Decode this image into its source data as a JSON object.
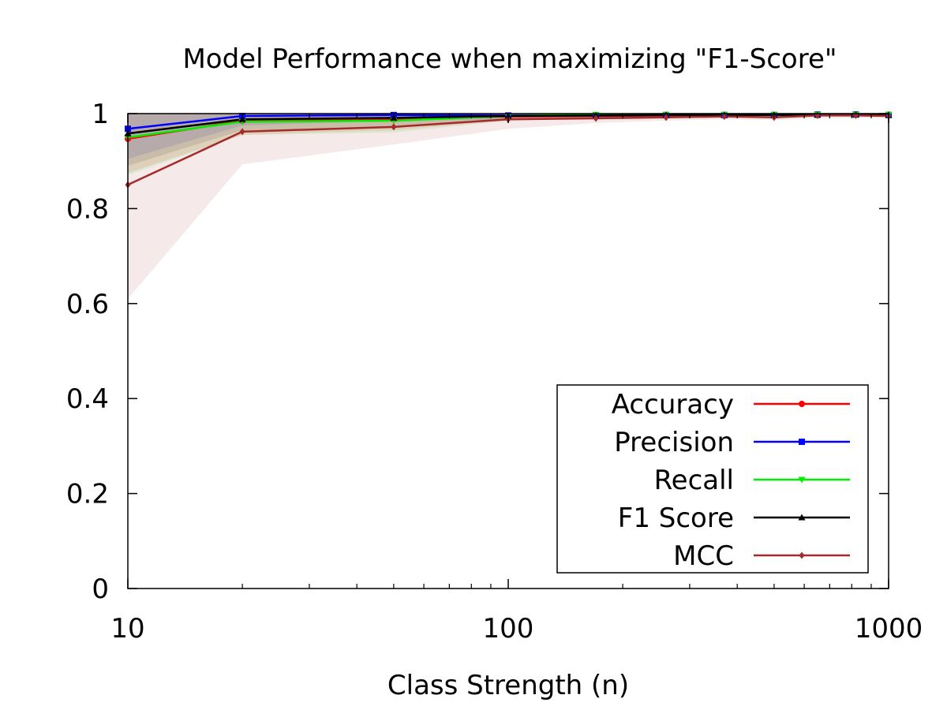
{
  "chart_data": {
    "type": "line",
    "title": "Model Performance when maximizing \"F1-Score\"",
    "xlabel": "Class Strength (n)",
    "ylabel": "",
    "xscale": "log",
    "xlim": [
      10,
      1000
    ],
    "ylim": [
      0,
      1
    ],
    "xticks": [
      {
        "value": 10,
        "label": "10"
      },
      {
        "value": 100,
        "label": "100"
      },
      {
        "value": 1000,
        "label": "1000"
      }
    ],
    "yticks": [
      {
        "value": 0,
        "label": "0"
      },
      {
        "value": 0.2,
        "label": "0.2"
      },
      {
        "value": 0.4,
        "label": "0.4"
      },
      {
        "value": 0.6,
        "label": "0.6"
      },
      {
        "value": 0.8,
        "label": "0.8"
      },
      {
        "value": 1,
        "label": "1"
      }
    ],
    "grid": false,
    "legend_position": "bottom-right",
    "x": [
      10,
      20,
      50,
      100,
      170,
      260,
      370,
      500,
      650,
      820,
      1000
    ],
    "series": [
      {
        "name": "Accuracy",
        "color": "#ff0000",
        "marker": "circle",
        "values": [
          0.947,
          0.985,
          0.988,
          0.994,
          0.995,
          0.996,
          0.997,
          0.997,
          0.997,
          0.998,
          0.998
        ],
        "lower": [
          0.875,
          0.955,
          0.965,
          0.985,
          0.99,
          0.993,
          0.994,
          0.994,
          0.995,
          0.996,
          0.996
        ],
        "upper": [
          1.0,
          1.0,
          1.0,
          1.0,
          1.0,
          1.0,
          1.0,
          1.0,
          1.0,
          1.0,
          1.0
        ]
      },
      {
        "name": "Precision",
        "color": "#0000ff",
        "marker": "square",
        "values": [
          0.968,
          0.995,
          0.997,
          0.996,
          0.996,
          0.997,
          0.997,
          0.997,
          0.998,
          0.998,
          0.997
        ],
        "lower": [
          0.905,
          0.975,
          0.985,
          0.988,
          0.99,
          0.992,
          0.993,
          0.994,
          0.995,
          0.996,
          0.995
        ],
        "upper": [
          1.0,
          1.0,
          1.0,
          1.0,
          1.0,
          1.0,
          1.0,
          1.0,
          1.0,
          1.0,
          1.0
        ]
      },
      {
        "name": "Recall",
        "color": "#00ee00",
        "marker": "triangle-down",
        "values": [
          0.95,
          0.983,
          0.985,
          0.995,
          0.998,
          0.998,
          0.998,
          0.998,
          0.998,
          0.998,
          0.998
        ],
        "lower": [
          0.87,
          0.955,
          0.96,
          0.985,
          0.992,
          0.994,
          0.995,
          0.995,
          0.996,
          0.996,
          0.996
        ],
        "upper": [
          1.0,
          1.0,
          1.0,
          1.0,
          1.0,
          1.0,
          1.0,
          1.0,
          1.0,
          1.0,
          1.0
        ]
      },
      {
        "name": "F1 Score",
        "color": "#000000",
        "marker": "triangle-up",
        "values": [
          0.958,
          0.988,
          0.991,
          0.995,
          0.996,
          0.997,
          0.997,
          0.997,
          0.997,
          0.998,
          0.997
        ],
        "lower": [
          0.89,
          0.965,
          0.97,
          0.987,
          0.991,
          0.993,
          0.994,
          0.995,
          0.995,
          0.996,
          0.995
        ],
        "upper": [
          1.0,
          1.0,
          1.0,
          1.0,
          1.0,
          1.0,
          1.0,
          1.0,
          1.0,
          1.0,
          1.0
        ]
      },
      {
        "name": "MCC",
        "color": "#a52a2a",
        "marker": "diamond",
        "values": [
          0.85,
          0.962,
          0.972,
          0.988,
          0.99,
          0.992,
          0.994,
          0.992,
          0.996,
          0.996,
          0.995
        ],
        "lower": [
          0.61,
          0.893,
          0.935,
          0.968,
          0.98,
          0.985,
          0.988,
          0.986,
          0.99,
          0.991,
          0.99
        ],
        "upper": [
          1.0,
          1.0,
          1.0,
          1.0,
          1.0,
          1.0,
          1.0,
          1.0,
          1.0,
          1.0,
          1.0
        ]
      }
    ]
  }
}
